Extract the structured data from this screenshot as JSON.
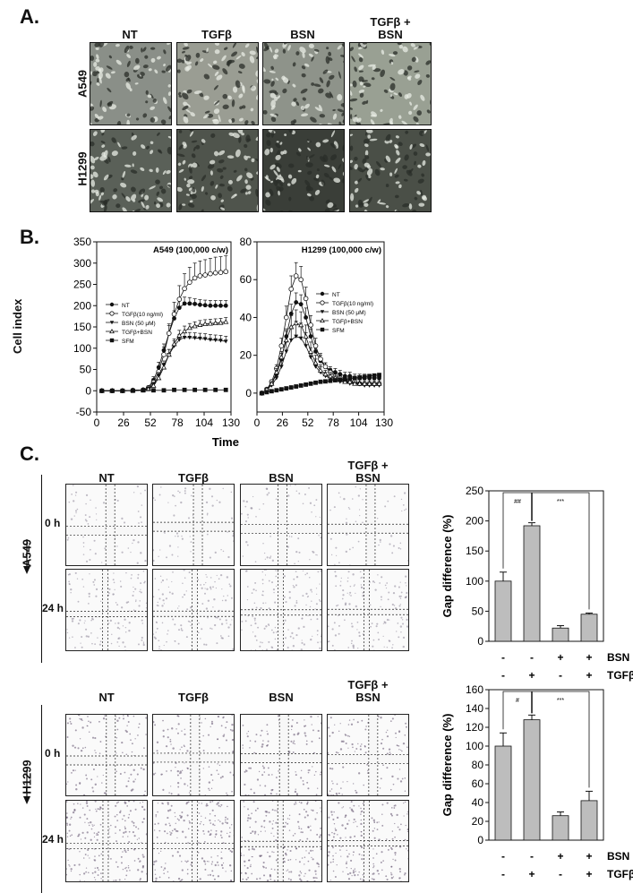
{
  "panel_a": {
    "letter": "A.",
    "columns": [
      "NT",
      "TGFβ",
      "BSN",
      "TGFβ +\nBSN"
    ],
    "col_line1": [
      "NT",
      "TGFβ",
      "BSN",
      "TGFβ +"
    ],
    "col_line2": [
      "",
      "",
      "",
      "BSN"
    ],
    "rows": [
      "A549",
      "H1299"
    ]
  },
  "panel_b": {
    "letter": "B.",
    "xlabel": "Time (h)",
    "ylabel": "Cell index",
    "legend": [
      "NT",
      "TGFβ(10 ng/ml)",
      "BSN (50 μM)",
      "TGFβ+BSN",
      "SFM"
    ]
  },
  "panel_c": {
    "letter": "C.",
    "columns_line1": [
      "NT",
      "TGFβ",
      "BSN",
      "TGFβ +"
    ],
    "columns_line2": [
      "",
      "",
      "",
      "BSN"
    ],
    "rows": [
      "A549",
      "H1299"
    ],
    "time0": "0 h",
    "time24": "24 h",
    "bar_ylabel": "Gap difference (%)",
    "row_bsn": {
      "label": "BSN",
      "signs": [
        "-",
        "-",
        "+",
        "+"
      ]
    },
    "row_tgf": {
      "label": "TGFβ",
      "signs": [
        "-",
        "+",
        "-",
        "+"
      ]
    },
    "sig_a549": {
      "left": "##",
      "right": "***"
    },
    "sig_h1299": {
      "left": "#",
      "right": "***"
    }
  },
  "chart_data": [
    {
      "type": "line",
      "title": "A549 (100,000 c/w)",
      "xlabel": "Time (h)",
      "ylabel": "Cell index",
      "xlim": [
        0,
        130
      ],
      "ylim": [
        -50,
        350
      ],
      "xticks": [
        0,
        26,
        52,
        78,
        104,
        130
      ],
      "yticks": [
        -50,
        0,
        50,
        100,
        150,
        200,
        250,
        300,
        350
      ],
      "legend_position": "left-middle",
      "series": [
        {
          "name": "NT",
          "marker": "circle-filled",
          "x": [
            5,
            15,
            25,
            35,
            45,
            50,
            55,
            60,
            65,
            70,
            75,
            80,
            85,
            90,
            95,
            100,
            105,
            110,
            115,
            120,
            125
          ],
          "y": [
            0,
            0,
            0,
            1,
            2,
            8,
            25,
            55,
            95,
            135,
            170,
            195,
            205,
            205,
            204,
            202,
            201,
            200,
            200,
            200,
            200
          ],
          "err": [
            0,
            0,
            0,
            0,
            1,
            3,
            8,
            12,
            15,
            18,
            18,
            18,
            15,
            14,
            12,
            12,
            12,
            12,
            12,
            12,
            12
          ]
        },
        {
          "name": "TGFβ(10 ng/ml)",
          "marker": "circle-open",
          "x": [
            5,
            15,
            25,
            35,
            45,
            50,
            55,
            60,
            65,
            70,
            75,
            80,
            85,
            90,
            95,
            100,
            105,
            110,
            115,
            120,
            125
          ],
          "y": [
            0,
            0,
            0,
            1,
            2,
            6,
            20,
            45,
            85,
            135,
            180,
            215,
            240,
            255,
            265,
            270,
            272,
            275,
            277,
            278,
            280
          ],
          "err": [
            0,
            0,
            0,
            0,
            1,
            3,
            8,
            12,
            18,
            22,
            28,
            32,
            35,
            35,
            35,
            35,
            36,
            36,
            37,
            37,
            37
          ]
        },
        {
          "name": "BSN (50 μM)",
          "marker": "triangle-filled",
          "x": [
            5,
            15,
            25,
            35,
            45,
            50,
            55,
            60,
            65,
            70,
            75,
            80,
            85,
            90,
            95,
            100,
            105,
            110,
            115,
            120,
            125
          ],
          "y": [
            0,
            0,
            0,
            1,
            2,
            5,
            15,
            35,
            60,
            85,
            105,
            120,
            125,
            125,
            124,
            123,
            122,
            120,
            119,
            118,
            116
          ],
          "err": [
            0,
            0,
            0,
            0,
            1,
            2,
            5,
            8,
            10,
            12,
            12,
            12,
            12,
            12,
            12,
            12,
            12,
            12,
            12,
            12,
            12
          ]
        },
        {
          "name": "TGFβ+BSN",
          "marker": "triangle-open",
          "x": [
            5,
            15,
            25,
            35,
            45,
            50,
            55,
            60,
            65,
            70,
            75,
            80,
            85,
            90,
            95,
            100,
            105,
            110,
            115,
            120,
            125
          ],
          "y": [
            0,
            0,
            0,
            1,
            2,
            4,
            12,
            30,
            55,
            85,
            110,
            130,
            140,
            148,
            152,
            155,
            157,
            158,
            159,
            160,
            162
          ],
          "err": [
            0,
            0,
            0,
            0,
            1,
            2,
            5,
            8,
            10,
            12,
            12,
            12,
            12,
            10,
            10,
            10,
            10,
            10,
            10,
            10,
            10
          ]
        },
        {
          "name": "SFM",
          "marker": "square-filled",
          "x": [
            5,
            15,
            25,
            35,
            45,
            55,
            65,
            75,
            85,
            95,
            105,
            115,
            125
          ],
          "y": [
            0,
            0,
            0,
            0,
            1,
            1,
            1,
            2,
            2,
            2,
            2,
            2,
            2
          ],
          "err": [
            0,
            0,
            0,
            0,
            0,
            0,
            0,
            0,
            0,
            0,
            0,
            0,
            0
          ]
        }
      ]
    },
    {
      "type": "line",
      "title": "H1299 (100,000 c/w)",
      "xlabel": "Time (h)",
      "ylabel": "",
      "xlim": [
        0,
        130
      ],
      "ylim": [
        -10,
        80
      ],
      "xticks": [
        0,
        26,
        52,
        78,
        104,
        130
      ],
      "yticks": [
        0,
        20,
        40,
        60,
        80
      ],
      "legend_position": "right-middle",
      "series": [
        {
          "name": "NT",
          "marker": "circle-filled",
          "x": [
            5,
            10,
            15,
            20,
            25,
            30,
            35,
            40,
            45,
            50,
            55,
            60,
            65,
            70,
            75,
            80,
            85,
            90,
            95,
            100,
            105,
            110,
            115,
            120,
            125
          ],
          "y": [
            0,
            2,
            5,
            10,
            18,
            30,
            42,
            48,
            47,
            40,
            30,
            22,
            17,
            14,
            12,
            11,
            10,
            9,
            9,
            8,
            8,
            8,
            8,
            8,
            8
          ],
          "err": [
            0,
            0,
            1,
            2,
            3,
            4,
            5,
            5,
            5,
            5,
            4,
            3,
            3,
            2,
            2,
            2,
            2,
            2,
            2,
            2,
            2,
            2,
            2,
            2,
            2
          ]
        },
        {
          "name": "TGFβ(10 ng/ml)",
          "marker": "circle-open",
          "x": [
            5,
            10,
            15,
            20,
            25,
            30,
            35,
            40,
            45,
            50,
            55,
            60,
            65,
            70,
            75,
            80,
            85,
            90,
            95,
            100,
            105,
            110,
            115,
            120,
            125
          ],
          "y": [
            0,
            2,
            6,
            13,
            25,
            40,
            55,
            62,
            60,
            50,
            36,
            25,
            18,
            14,
            11,
            9,
            8,
            7,
            6,
            6,
            5,
            5,
            5,
            5,
            5
          ],
          "err": [
            0,
            0,
            1,
            2,
            4,
            6,
            7,
            7,
            7,
            6,
            5,
            4,
            3,
            2,
            2,
            2,
            2,
            2,
            2,
            2,
            2,
            2,
            2,
            2,
            2
          ]
        },
        {
          "name": "BSN (50 μM)",
          "marker": "triangle-filled",
          "x": [
            5,
            10,
            15,
            20,
            25,
            30,
            35,
            40,
            45,
            50,
            55,
            60,
            65,
            70,
            75,
            80,
            85,
            90,
            95,
            100,
            105,
            110,
            115,
            120,
            125
          ],
          "y": [
            0,
            2,
            4,
            8,
            14,
            22,
            28,
            30,
            29,
            25,
            19,
            14,
            11,
            9,
            8,
            7,
            6,
            6,
            5,
            5,
            5,
            4,
            4,
            4,
            4
          ],
          "err": [
            0,
            0,
            1,
            2,
            3,
            5,
            7,
            8,
            8,
            7,
            5,
            4,
            3,
            2,
            2,
            2,
            2,
            2,
            2,
            2,
            2,
            2,
            2,
            2,
            2
          ]
        },
        {
          "name": "TGFβ+BSN",
          "marker": "triangle-open",
          "x": [
            5,
            10,
            15,
            20,
            25,
            30,
            35,
            40,
            45,
            50,
            55,
            60,
            65,
            70,
            75,
            80,
            85,
            90,
            95,
            100,
            105,
            110,
            115,
            120,
            125
          ],
          "y": [
            0,
            2,
            5,
            11,
            19,
            28,
            35,
            37,
            36,
            30,
            22,
            16,
            12,
            10,
            9,
            8,
            7,
            6,
            6,
            5,
            5,
            5,
            5,
            5,
            5
          ],
          "err": [
            0,
            0,
            1,
            2,
            3,
            5,
            6,
            7,
            7,
            6,
            5,
            4,
            3,
            2,
            2,
            2,
            2,
            2,
            2,
            2,
            2,
            2,
            2,
            2,
            2
          ]
        },
        {
          "name": "SFM",
          "marker": "square-filled",
          "x": [
            5,
            10,
            15,
            20,
            25,
            30,
            35,
            40,
            45,
            50,
            55,
            60,
            65,
            70,
            75,
            80,
            85,
            90,
            95,
            100,
            105,
            110,
            115,
            120,
            125
          ],
          "y": [
            0,
            0.5,
            1,
            1.5,
            2,
            2.5,
            3,
            3.5,
            4,
            4.5,
            5,
            5.5,
            6,
            6.2,
            6.5,
            6.8,
            7,
            7.3,
            7.6,
            8,
            8.3,
            8.6,
            9,
            9.3,
            9.6
          ],
          "err": [
            0,
            0,
            0,
            0,
            0,
            0,
            0,
            0,
            0,
            0,
            0,
            0,
            0,
            0,
            0,
            0,
            0,
            0,
            0,
            0,
            0,
            0,
            0,
            0,
            0
          ]
        }
      ]
    },
    {
      "type": "bar",
      "ylabel": "Gap difference (%)",
      "ylim": [
        0,
        250
      ],
      "yticks": [
        0,
        50,
        100,
        150,
        200,
        250
      ],
      "values": [
        100,
        192,
        22,
        45
      ],
      "err": [
        15,
        5,
        4,
        2
      ]
    },
    {
      "type": "bar",
      "ylabel": "Gap difference (%)",
      "ylim": [
        0,
        160
      ],
      "yticks": [
        0,
        20,
        40,
        60,
        80,
        100,
        120,
        140,
        160
      ],
      "values": [
        100,
        128,
        26,
        42
      ],
      "err": [
        14,
        5,
        4,
        10
      ]
    }
  ]
}
